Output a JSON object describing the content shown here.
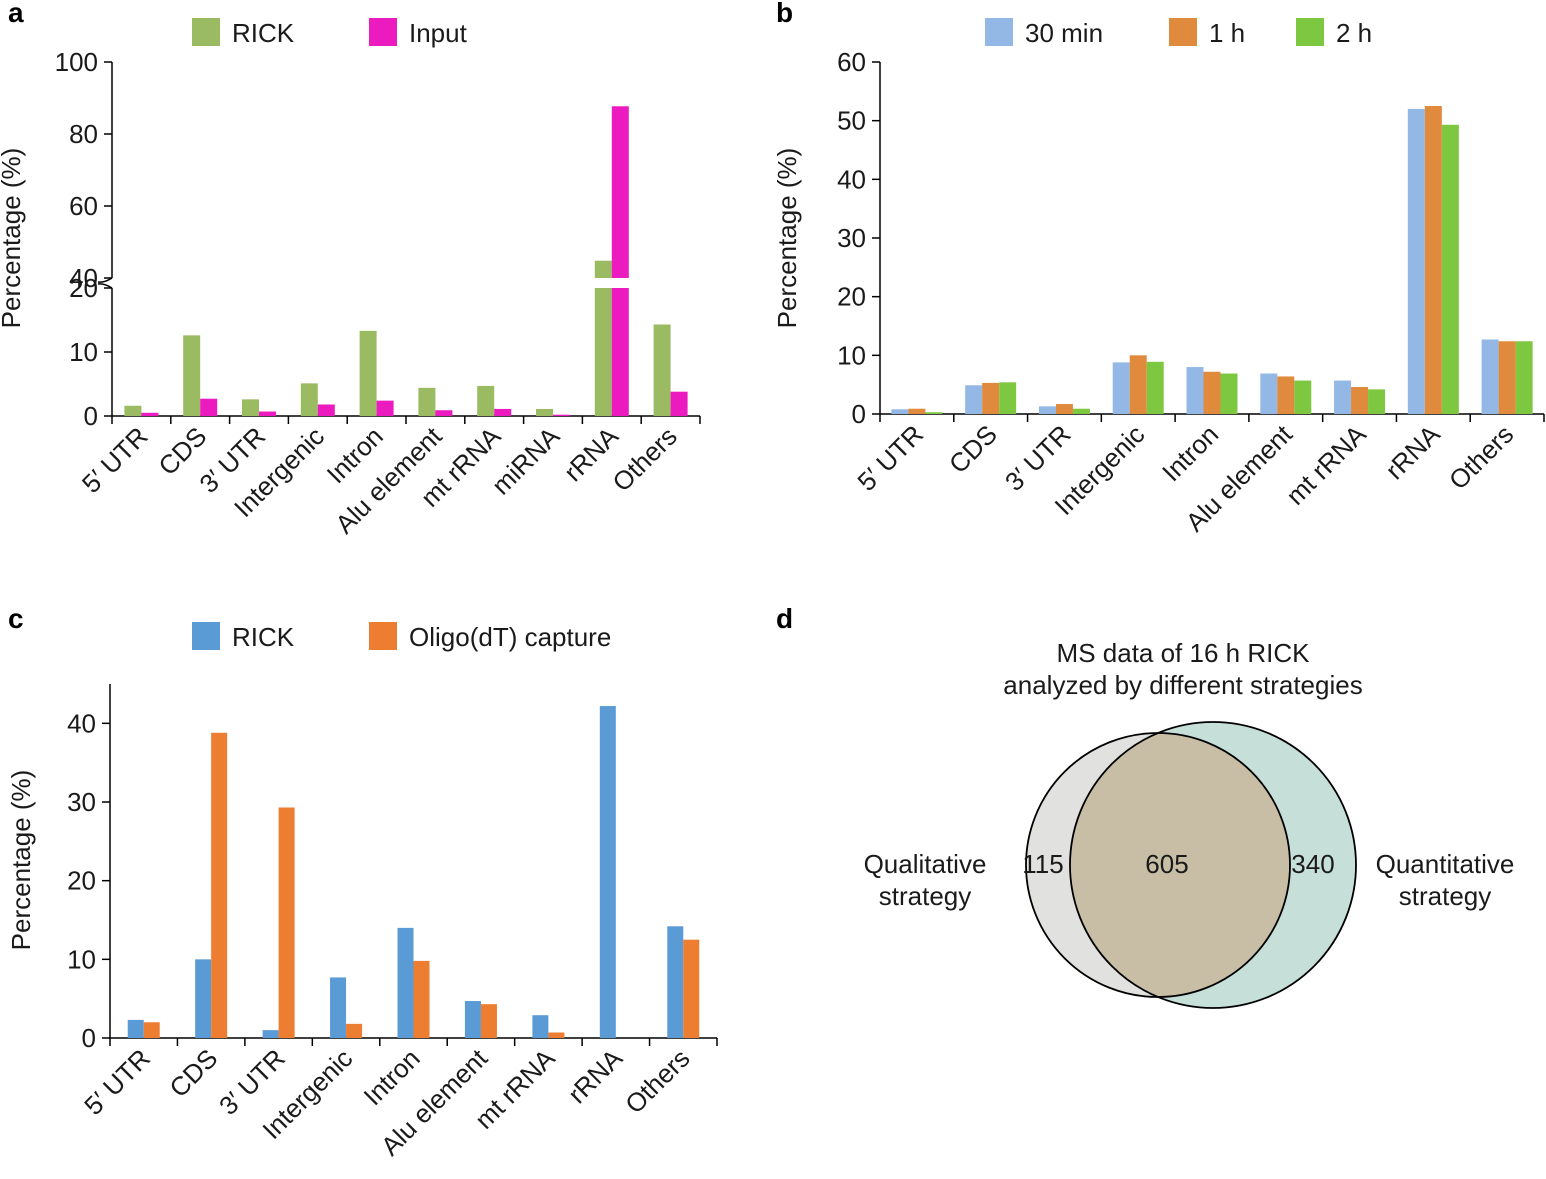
{
  "chart_data": [
    {
      "panel": "a",
      "type": "bar",
      "categories": [
        "5′ UTR",
        "CDS",
        "3′ UTR",
        "Intergenic",
        "Intron",
        "Alu element",
        "mt rRNA",
        "miRNA",
        "rRNA",
        "Others"
      ],
      "series": [
        {
          "name": "RICK",
          "color": "#9bbb63",
          "values": [
            1.6,
            12.6,
            2.6,
            5.1,
            13.3,
            4.4,
            4.7,
            1.1,
            44.8,
            14.3
          ]
        },
        {
          "name": "Input",
          "color": "#ec1bc0",
          "values": [
            0.5,
            2.7,
            0.7,
            1.8,
            2.4,
            0.9,
            1.1,
            0.2,
            87.7,
            3.8
          ]
        }
      ],
      "ylabel": "Percentage (%)",
      "axis_break": {
        "lower_range": [
          0,
          20
        ],
        "upper_range": [
          40,
          100
        ]
      },
      "yticks_lower": [
        "0",
        "10",
        "20"
      ],
      "yticks_upper": [
        "40",
        "60",
        "80",
        "100"
      ]
    },
    {
      "panel": "b",
      "type": "bar",
      "categories": [
        "5′ UTR",
        "CDS",
        "3′ UTR",
        "Intergenic",
        "Intron",
        "Alu element",
        "mt rRNA",
        "rRNA",
        "Others"
      ],
      "series": [
        {
          "name": "30 min",
          "color": "#93b8e6",
          "values": [
            0.8,
            4.9,
            1.3,
            8.8,
            8.0,
            6.9,
            5.7,
            52.0,
            12.7
          ]
        },
        {
          "name": "1 h",
          "color": "#e08a3d",
          "values": [
            0.9,
            5.3,
            1.7,
            10.0,
            7.2,
            6.4,
            4.6,
            52.5,
            12.4
          ]
        },
        {
          "name": "2 h",
          "color": "#7ec741",
          "values": [
            0.3,
            5.4,
            0.9,
            8.9,
            6.9,
            5.7,
            4.2,
            49.3,
            12.4
          ]
        }
      ],
      "ylabel": "Percentage (%)",
      "ylim": [
        0,
        60
      ],
      "yticks": [
        "0",
        "10",
        "20",
        "30",
        "40",
        "50",
        "60"
      ]
    },
    {
      "panel": "c",
      "type": "bar",
      "categories": [
        "5′ UTR",
        "CDS",
        "3′ UTR",
        "Intergenic",
        "Intron",
        "Alu element",
        "mt rRNA",
        "rRNA",
        "Others"
      ],
      "series": [
        {
          "name": "RICK",
          "color": "#5b9bd5",
          "values": [
            2.3,
            10.0,
            1.0,
            7.7,
            14.0,
            4.7,
            2.9,
            42.2,
            14.2
          ]
        },
        {
          "name": "Oligo(dT) capture",
          "color": "#ed7d31",
          "values": [
            2.0,
            38.8,
            29.3,
            1.8,
            9.8,
            4.3,
            0.7,
            0.0,
            12.5
          ]
        }
      ],
      "ylabel": "Percentage (%)",
      "ylim": [
        0,
        45
      ],
      "yticks": [
        "0",
        "10",
        "20",
        "30",
        "40"
      ]
    },
    {
      "panel": "d",
      "type": "venn",
      "title_line1": "MS data of 16 h RICK",
      "title_line2": "analyzed by different strategies",
      "left_label_line1": "Qualitative",
      "left_label_line2": "strategy",
      "right_label_line1": "Quantitative",
      "right_label_line2": "strategy",
      "left_only": "115",
      "overlap": "605",
      "right_only": "340",
      "colors": {
        "left": "#e1e1df",
        "right": "#c6dfd9",
        "overlap": "#c8bea6"
      }
    }
  ],
  "panel_labels": {
    "a": "a",
    "b": "b",
    "c": "c",
    "d": "d"
  }
}
